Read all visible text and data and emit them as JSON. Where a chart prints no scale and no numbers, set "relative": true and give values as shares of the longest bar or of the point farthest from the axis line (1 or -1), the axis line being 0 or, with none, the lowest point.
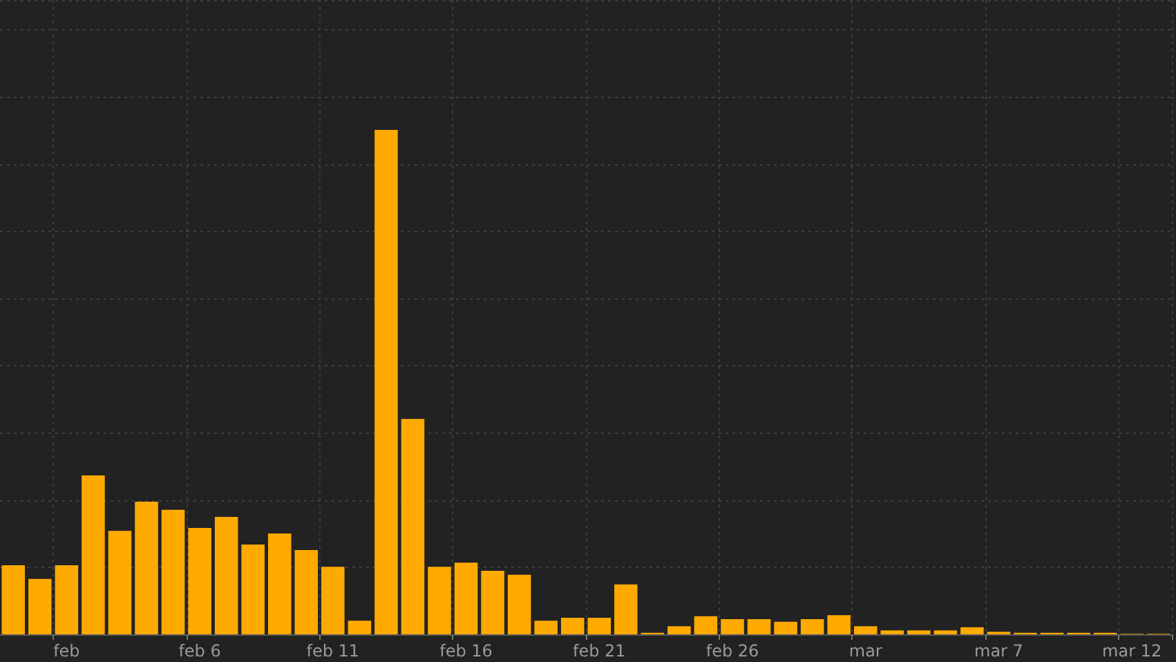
{
  "chart_data": {
    "type": "bar",
    "relative": true,
    "color": "#ffaa00",
    "grid": true,
    "categories": [
      null,
      null,
      "feb",
      null,
      null,
      null,
      null,
      "feb 6",
      null,
      null,
      null,
      null,
      "feb 11",
      null,
      null,
      null,
      null,
      "feb 16",
      null,
      null,
      null,
      null,
      "feb 21",
      null,
      null,
      null,
      null,
      "feb 26",
      null,
      null,
      null,
      null,
      "mar",
      null,
      null,
      null,
      null,
      "mar 7",
      null,
      null,
      null,
      null,
      "mar 12",
      null
    ],
    "values": [
      0.137,
      0.11,
      0.137,
      0.315,
      0.205,
      0.263,
      0.247,
      0.211,
      0.233,
      0.178,
      0.2,
      0.167,
      0.134,
      0.027,
      1.0,
      0.427,
      0.134,
      0.142,
      0.126,
      0.118,
      0.027,
      0.033,
      0.033,
      0.099,
      0.003,
      0.016,
      0.036,
      0.03,
      0.03,
      0.025,
      0.03,
      0.038,
      0.016,
      0.008,
      0.008,
      0.008,
      0.014,
      0.005,
      0.003,
      0.003,
      0.003,
      0.003,
      0.001,
      0.001
    ]
  }
}
